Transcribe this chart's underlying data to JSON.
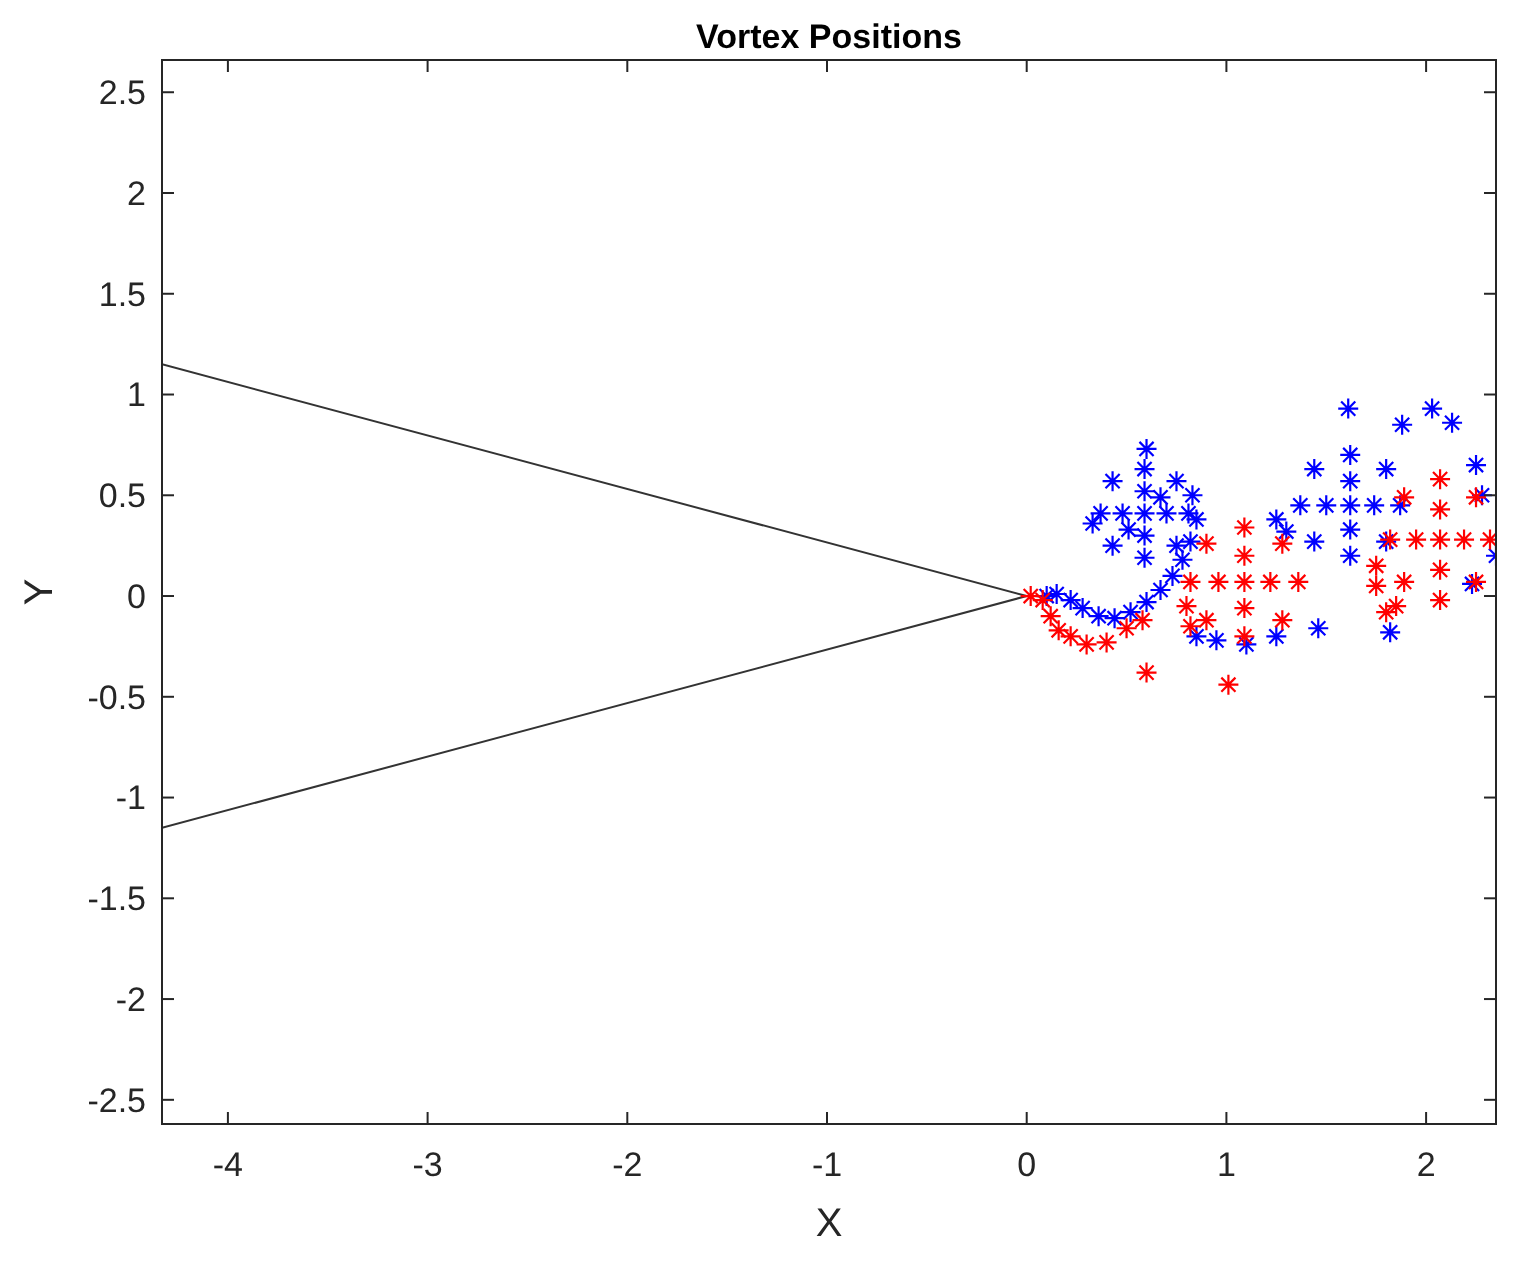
{
  "chart_data": {
    "type": "scatter",
    "title": "Vortex Positions",
    "xlabel": "X",
    "ylabel": "Y",
    "xlim": [
      -4.33,
      2.35
    ],
    "ylim": [
      -2.62,
      2.66
    ],
    "xticks": [
      -4,
      -3,
      -2,
      -1,
      0,
      1,
      2
    ],
    "yticks": [
      -2.5,
      -2,
      -1.5,
      -1,
      -0.5,
      0,
      0.5,
      1,
      1.5,
      2,
      2.5
    ],
    "grid": false,
    "series": [
      {
        "type": "line",
        "color": "#333333",
        "marker": "none",
        "line_style": "solid",
        "x": [
          -4.33,
          0,
          -4.33
        ],
        "values": [
          1.15,
          0,
          -1.15
        ]
      },
      {
        "color": "#0000ff",
        "marker": "cross",
        "x": [
          0.59,
          0.81,
          0.37,
          0.59,
          0.59,
          0.75,
          0.43,
          0.75,
          0.43,
          0.7,
          0.48,
          0.59,
          0.59,
          0.67,
          0.51,
          0.83,
          0.85,
          0.82,
          0.78,
          0.73,
          0.67,
          0.6,
          0.52,
          0.44,
          0.36,
          0.28,
          0.22,
          0.15,
          0.1,
          1.62,
          1.87,
          1.37,
          1.62,
          1.62,
          1.8,
          1.44,
          1.8,
          1.44,
          1.74,
          1.5,
          1.62,
          1.62,
          1.3,
          1.25,
          1.61,
          1.88,
          2.03,
          2.13,
          2.25,
          1.82,
          1.46,
          0.33,
          0.6,
          2.28,
          2.23,
          0.95,
          1.1,
          1.25,
          0.85,
          2.35
        ],
        "values": [
          0.41,
          0.41,
          0.41,
          0.63,
          0.19,
          0.57,
          0.57,
          0.25,
          0.25,
          0.41,
          0.41,
          0.52,
          0.3,
          0.49,
          0.33,
          0.5,
          0.38,
          0.27,
          0.18,
          0.1,
          0.03,
          -0.03,
          -0.08,
          -0.11,
          -0.1,
          -0.06,
          -0.02,
          0.01,
          0.0,
          0.45,
          0.45,
          0.45,
          0.7,
          0.2,
          0.63,
          0.63,
          0.27,
          0.27,
          0.45,
          0.45,
          0.57,
          0.33,
          0.32,
          0.38,
          0.93,
          0.85,
          0.93,
          0.86,
          0.65,
          -0.18,
          -0.16,
          0.36,
          0.73,
          0.5,
          0.06,
          -0.22,
          -0.24,
          -0.2,
          -0.2,
          0.2
        ]
      },
      {
        "color": "#ff0000",
        "marker": "cross",
        "x": [
          0.02,
          0.08,
          0.12,
          0.16,
          0.22,
          0.3,
          0.4,
          0.5,
          0.58,
          1.09,
          1.36,
          0.82,
          1.09,
          1.09,
          1.28,
          0.9,
          1.28,
          0.9,
          1.22,
          0.96,
          1.09,
          1.09,
          0.8,
          0.82,
          2.07,
          2.32,
          1.82,
          2.07,
          2.07,
          2.25,
          1.89,
          2.25,
          1.89,
          2.19,
          1.95,
          2.07,
          2.07,
          1.75,
          1.85,
          1.75,
          0.6,
          1.01,
          1.8
        ],
        "values": [
          0.0,
          -0.02,
          -0.1,
          -0.17,
          -0.2,
          -0.24,
          -0.23,
          -0.16,
          -0.12,
          0.07,
          0.07,
          0.07,
          0.34,
          -0.2,
          0.26,
          0.26,
          -0.12,
          -0.12,
          0.07,
          0.07,
          0.2,
          -0.06,
          -0.05,
          -0.15,
          0.28,
          0.28,
          0.28,
          0.58,
          -0.02,
          0.49,
          0.49,
          0.07,
          0.07,
          0.28,
          0.28,
          0.43,
          0.13,
          0.05,
          -0.05,
          0.15,
          -0.38,
          -0.44,
          -0.08
        ]
      }
    ]
  }
}
